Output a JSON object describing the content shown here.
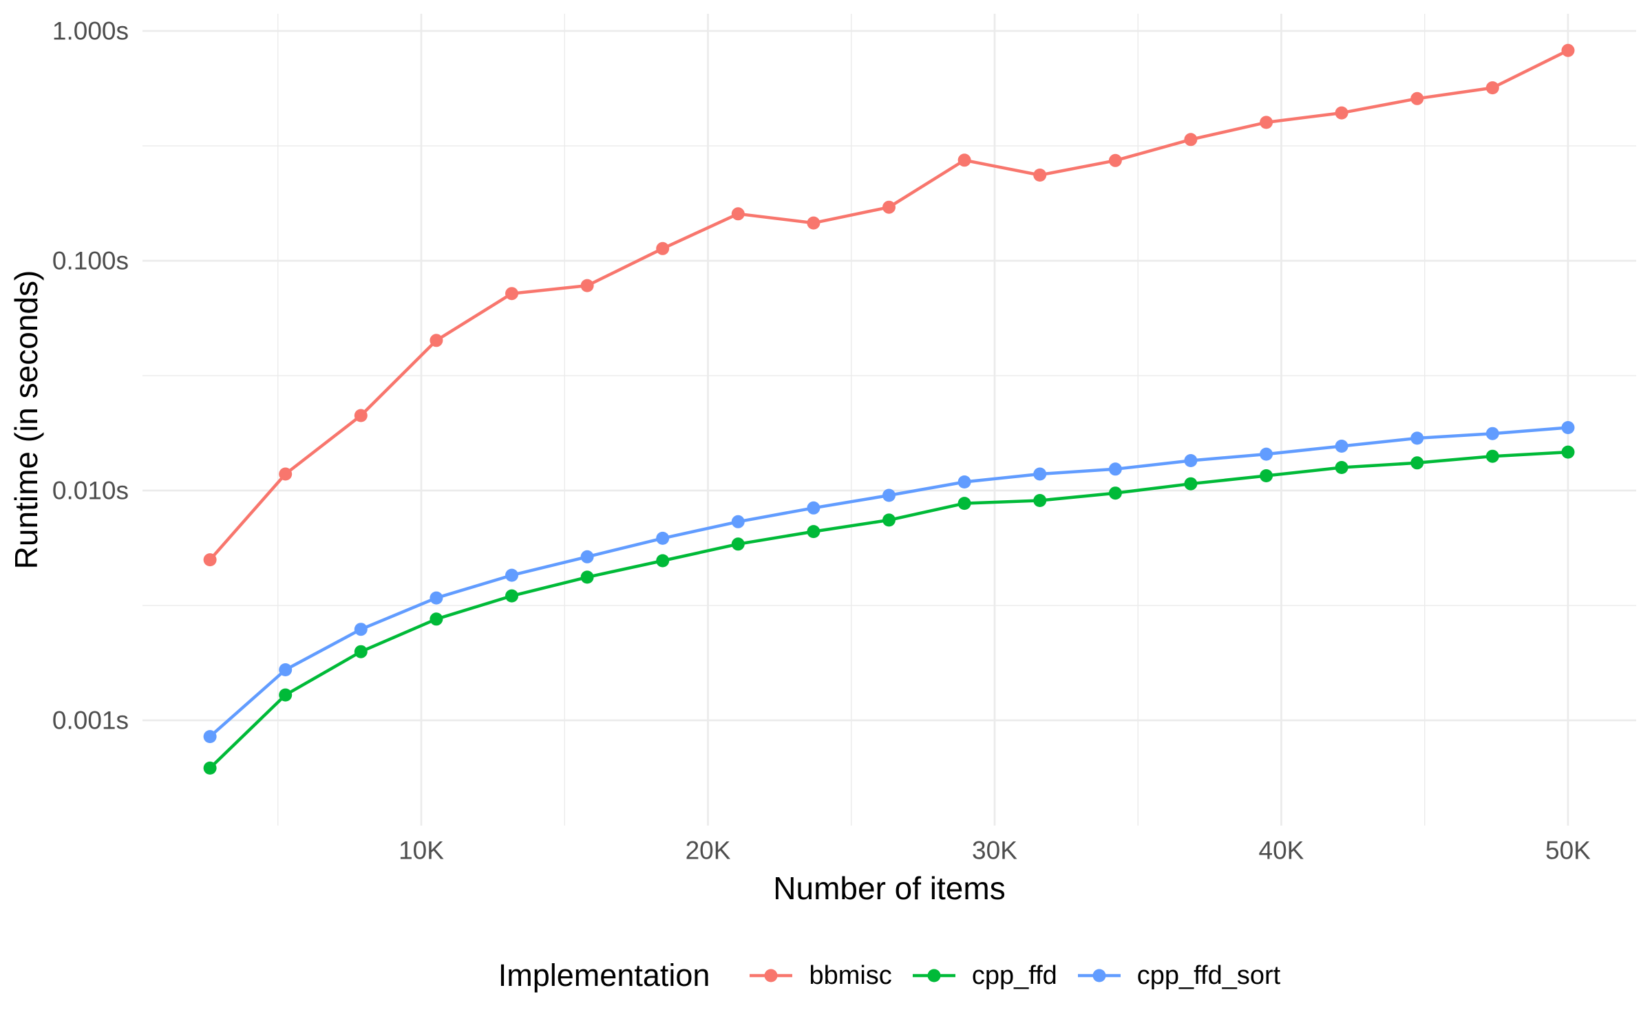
{
  "chart_data": {
    "type": "line",
    "title": "",
    "xlabel": "Number of items",
    "ylabel": "Runtime (in seconds)",
    "legend_title": "Implementation",
    "legend_position": "bottom",
    "grid": true,
    "y_scale": "log10",
    "x": [
      2632,
      5263,
      7895,
      10526,
      13158,
      15789,
      18421,
      21053,
      23684,
      26316,
      28947,
      31579,
      34211,
      36842,
      39474,
      42105,
      44737,
      47368,
      50000
    ],
    "series": [
      {
        "name": "bbmisc",
        "color": "#F8766D",
        "values": [
          0.005,
          0.0118,
          0.0212,
          0.045,
          0.072,
          0.078,
          0.113,
          0.16,
          0.146,
          0.171,
          0.274,
          0.236,
          0.273,
          0.337,
          0.4,
          0.44,
          0.508,
          0.566,
          0.823
        ]
      },
      {
        "name": "cpp_ffd",
        "color": "#00BA38",
        "values": [
          0.00062,
          0.00129,
          0.00199,
          0.00276,
          0.00348,
          0.0042,
          0.00495,
          0.00585,
          0.00663,
          0.00744,
          0.0088,
          0.00905,
          0.00975,
          0.0107,
          0.0116,
          0.0126,
          0.0132,
          0.0141,
          0.0147
        ]
      },
      {
        "name": "cpp_ffd_sort",
        "color": "#619CFF",
        "values": [
          0.00085,
          0.00166,
          0.00249,
          0.00341,
          0.00428,
          0.00515,
          0.0062,
          0.00732,
          0.0084,
          0.00953,
          0.0109,
          0.0118,
          0.0124,
          0.0135,
          0.0144,
          0.0156,
          0.0169,
          0.0177,
          0.0188
        ]
      }
    ],
    "x_ticks": [
      {
        "label": "10K",
        "value": 10000
      },
      {
        "label": "20K",
        "value": 20000
      },
      {
        "label": "30K",
        "value": 30000
      },
      {
        "label": "40K",
        "value": 40000
      },
      {
        "label": "50K",
        "value": 50000
      }
    ],
    "x_minor_ticks": [
      5000,
      15000,
      25000,
      35000,
      45000
    ],
    "y_ticks": [
      {
        "label": "1.000s",
        "value": 1
      },
      {
        "label": "0.100s",
        "value": 0.1
      },
      {
        "label": "0.010s",
        "value": 0.01
      },
      {
        "label": "0.001s",
        "value": 0.001
      }
    ],
    "y_minor_ticks": [
      0.3162,
      0.03162,
      0.003162
    ],
    "x_domain": [
      276,
      52378
    ],
    "y_domain_log10": [
      -3.458,
      0.0749
    ],
    "grid_color": "#EBEBEB",
    "tick_label_color": "#4D4D4D",
    "background_color": "#FFFFFF"
  }
}
